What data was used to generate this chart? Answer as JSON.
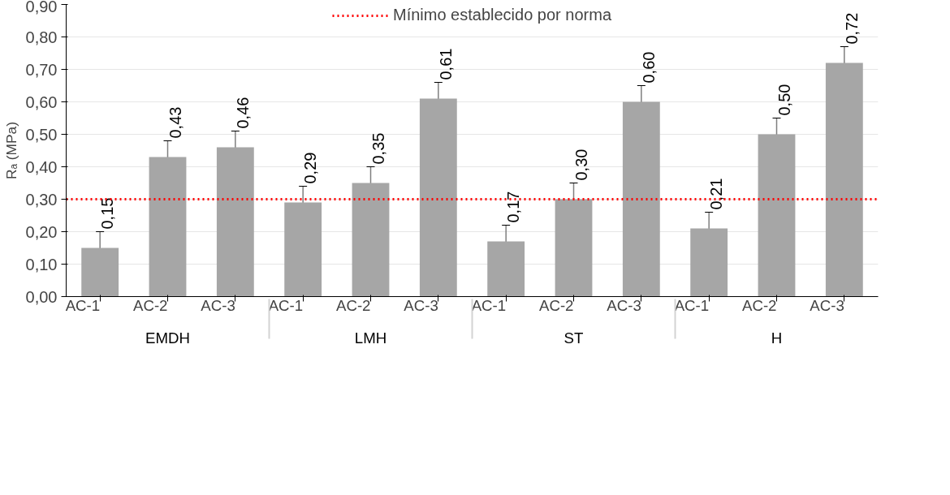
{
  "chart_data": {
    "type": "bar",
    "ylabel": "Rₐ (MPa)",
    "categories": [
      "AC-1",
      "AC-2",
      "AC-3",
      "AC-1",
      "AC-2",
      "AC-3",
      "AC-1",
      "AC-2",
      "AC-3",
      "AC-1",
      "AC-2",
      "AC-3"
    ],
    "annotations": [
      "EMDH",
      "LMH",
      "ST",
      "H"
    ],
    "values": [
      0.15,
      0.43,
      0.46,
      0.29,
      0.35,
      0.61,
      0.17,
      0.3,
      0.6,
      0.21,
      0.5,
      0.72
    ],
    "value_labels": [
      "0,15",
      "0,43",
      "0,46",
      "0,29",
      "0,35",
      "0,61",
      "0,17",
      "0,30",
      "0,60",
      "0,21",
      "0,50",
      "0,72"
    ],
    "errors": [
      0.05,
      0.05,
      0.05,
      0.05,
      0.05,
      0.05,
      0.05,
      0.05,
      0.05,
      0.05,
      0.05,
      0.05
    ],
    "color": "#a6a6a6",
    "ylim": [
      0,
      0.9
    ],
    "yticks": [
      {
        "value": 0,
        "label": "0,00"
      },
      {
        "value": 0.1,
        "label": "0,10"
      },
      {
        "value": 0.2,
        "label": "0,20"
      },
      {
        "value": 0.3,
        "label": "0,30"
      },
      {
        "value": 0.4,
        "label": "0,40"
      },
      {
        "value": 0.5,
        "label": "0,50"
      },
      {
        "value": 0.6,
        "label": "0,60"
      },
      {
        "value": 0.7,
        "label": "0,70"
      },
      {
        "value": 0.8,
        "label": "0,80"
      },
      {
        "value": 0.9,
        "label": "0,90"
      }
    ],
    "ref_lines": [
      {
        "axis": "y",
        "value": 0.3,
        "label": "Mínimo establecido por norma",
        "color": "#ff0000",
        "line_style": "dotted"
      }
    ],
    "grid": "y",
    "legend": "top"
  }
}
